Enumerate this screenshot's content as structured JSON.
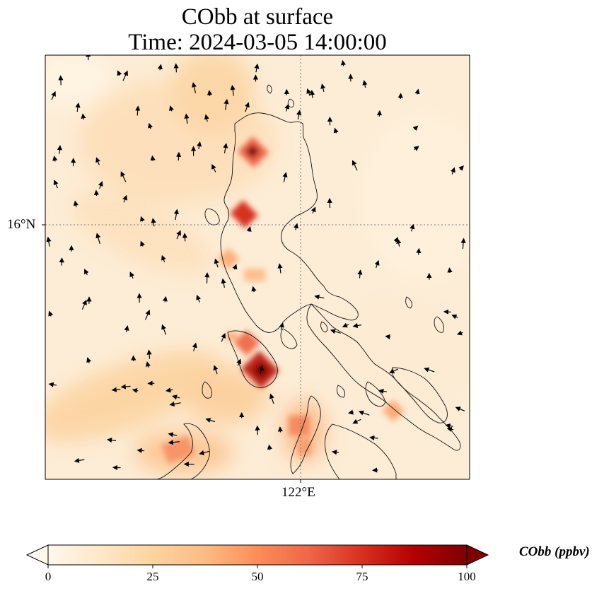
{
  "title": {
    "line1": "CObb at surface",
    "line2": "Time: 2024-03-05 14:00:00"
  },
  "axes": {
    "lat_label": "16°N",
    "lon_label": "122°E",
    "gridlines": "dotted"
  },
  "colorbar": {
    "label": "CObb (ppbv)",
    "ticks": [
      "0",
      "25",
      "50",
      "75",
      "100"
    ],
    "min": 0,
    "max": 100,
    "colormap": "OrRd",
    "extend": "both",
    "colors": [
      "#fff7ec",
      "#fee8c8",
      "#fdd49e",
      "#fdbb84",
      "#fc8d59",
      "#ef6548",
      "#d7301f",
      "#b30000",
      "#7f0000"
    ]
  },
  "map": {
    "region": "Luzon, Philippines",
    "background_value": 8,
    "hotspots_ppbv": [
      {
        "lat": 16.7,
        "lon": 121.6,
        "value": 100
      },
      {
        "lat": 16.05,
        "lon": 121.55,
        "value": 90
      },
      {
        "lat": 15.5,
        "lon": 121.5,
        "value": 40
      },
      {
        "lat": 14.9,
        "lon": 121.75,
        "value": 60
      },
      {
        "lat": 14.55,
        "lon": 121.7,
        "value": 95
      },
      {
        "lat": 14.3,
        "lon": 121.65,
        "value": 70
      },
      {
        "lat": 13.85,
        "lon": 122.0,
        "value": 55
      },
      {
        "lat": 13.6,
        "lon": 122.05,
        "value": 55
      },
      {
        "lat": 13.7,
        "lon": 120.9,
        "value": 45
      },
      {
        "lat": 13.9,
        "lon": 123.2,
        "value": 40
      }
    ],
    "wind_vectors": "quiver, predominantly northerly flow"
  }
}
